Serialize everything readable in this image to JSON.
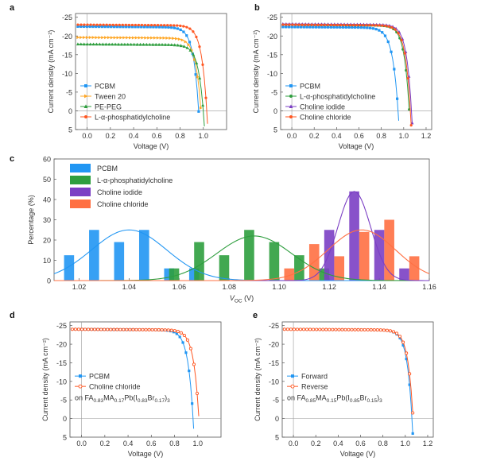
{
  "figure": {
    "panels": [
      "a",
      "b",
      "c",
      "d",
      "e"
    ]
  },
  "chart_data": [
    {
      "id": "a",
      "type": "line",
      "panel_label": "a",
      "xlabel": "Voltage (V)",
      "ylabel": "Current density (mA cm⁻²)",
      "xlim": [
        -0.1,
        1.2
      ],
      "ylim": [
        5,
        -26
      ],
      "xticks": [
        0.0,
        0.2,
        0.4,
        0.6,
        0.8,
        1.0
      ],
      "xtick_labels": [
        "0.0",
        "0.2",
        "0.4",
        "0.6",
        "0.8",
        "1.0"
      ],
      "yticks": [
        -25,
        -20,
        -15,
        -10,
        -5,
        0,
        5
      ],
      "ytick_labels": [
        "-25",
        "-20",
        "-15",
        "-10",
        "-5",
        "0",
        "5"
      ],
      "legend_position": "bottom-left",
      "series": [
        {
          "name": "PCBM",
          "marker": "square",
          "color": "#2196f3",
          "jsc": -22.5,
          "voc": 1.03,
          "vk": 0.96,
          "k": 0.045
        },
        {
          "name": "Tween 20",
          "marker": "triangle-right",
          "color": "#ffa726",
          "jsc": -19.6,
          "voc": 1.05,
          "vk": 0.98,
          "k": 0.045
        },
        {
          "name": "PE-PEG",
          "marker": "triangle-up",
          "color": "#2e9e3e",
          "jsc": -17.8,
          "voc": 1.07,
          "vk": 1.0,
          "k": 0.045
        },
        {
          "name": "L-α-phosphatidylcholine",
          "marker": "circle",
          "color": "#ff5722",
          "jsc": -23.0,
          "voc": 1.1,
          "vk": 1.03,
          "k": 0.045
        }
      ]
    },
    {
      "id": "b",
      "type": "line",
      "panel_label": "b",
      "xlabel": "Voltage (V)",
      "ylabel": "Current density (mA cm⁻²)",
      "xlim": [
        -0.1,
        1.25
      ],
      "ylim": [
        5,
        -26
      ],
      "xticks": [
        0.0,
        0.2,
        0.4,
        0.6,
        0.8,
        1.0,
        1.2
      ],
      "xtick_labels": [
        "0.0",
        "0.2",
        "0.4",
        "0.6",
        "0.8",
        "1.0",
        "1.2"
      ],
      "yticks": [
        -25,
        -20,
        -15,
        -10,
        -5,
        0,
        5
      ],
      "ytick_labels": [
        "-25",
        "-20",
        "-15",
        "-10",
        "-5",
        "0",
        "5"
      ],
      "legend_position": "bottom-left",
      "series": [
        {
          "name": "PCBM",
          "marker": "square",
          "color": "#2196f3",
          "jsc": -22.4,
          "voc": 1.07,
          "vk": 0.95,
          "k": 0.05
        },
        {
          "name": "L-α-phosphatidylcholine",
          "marker": "circle",
          "color": "#2e9e3e",
          "jsc": -23.0,
          "voc": 1.13,
          "vk": 1.05,
          "k": 0.045
        },
        {
          "name": "Choline iodide",
          "marker": "triangle-up",
          "color": "#7b3fc4",
          "jsc": -23.2,
          "voc": 1.16,
          "vk": 1.07,
          "k": 0.045
        },
        {
          "name": "Choline chloride",
          "marker": "circle",
          "color": "#ff5722",
          "jsc": -23.0,
          "voc": 1.15,
          "vk": 1.06,
          "k": 0.045
        }
      ]
    },
    {
      "id": "c",
      "type": "bar",
      "panel_label": "c",
      "xlabel": "V",
      "xlabel_sub": "OC",
      "xlabel_unit": " (V)",
      "ylabel": "Percentage (%)",
      "xlim": [
        1.01,
        1.16
      ],
      "ylim": [
        0,
        60
      ],
      "xticks": [
        1.02,
        1.04,
        1.06,
        1.08,
        1.1,
        1.12,
        1.14,
        1.16
      ],
      "xtick_labels": [
        "1.02",
        "1.04",
        "1.06",
        "1.08",
        "1.10",
        "1.12",
        "1.14",
        "1.16"
      ],
      "yticks": [
        0,
        10,
        20,
        30,
        40,
        50,
        60
      ],
      "ytick_labels": [
        "0",
        "10",
        "20",
        "30",
        "40",
        "50",
        "60"
      ],
      "legend_position": "top-left",
      "bar_width": 0.004,
      "series": [
        {
          "name": "PCBM",
          "color": "#2196f3",
          "x": [
            1.016,
            1.026,
            1.036,
            1.046,
            1.056,
            1.066
          ],
          "values": [
            12.5,
            25,
            19,
            25,
            6,
            6
          ],
          "fit": {
            "mu": 1.04,
            "sigma": 0.015,
            "amp": 25
          }
        },
        {
          "name": "L-α-phosphatidylcholine",
          "color": "#2e9e3e",
          "x": [
            1.058,
            1.068,
            1.078,
            1.088,
            1.098,
            1.108,
            1.118
          ],
          "values": [
            6,
            19,
            12.5,
            25,
            19,
            12.5,
            6
          ],
          "fit": {
            "mu": 1.09,
            "sigma": 0.015,
            "amp": 22
          }
        },
        {
          "name": "Choline iodide",
          "color": "#7b3fc4",
          "x": [
            1.12,
            1.13,
            1.14,
            1.15
          ],
          "values": [
            25,
            44,
            25,
            6
          ],
          "fit": {
            "mu": 1.13,
            "sigma": 0.0065,
            "amp": 44
          }
        },
        {
          "name": "Choline chloride",
          "color": "#ff7043",
          "x": [
            1.104,
            1.114,
            1.124,
            1.134,
            1.144,
            1.154
          ],
          "values": [
            6,
            18,
            12,
            24,
            30,
            12
          ],
          "fit": {
            "mu": 1.133,
            "sigma": 0.0135,
            "amp": 25
          }
        }
      ]
    },
    {
      "id": "d",
      "type": "line",
      "panel_label": "d",
      "xlabel": "Voltage (V)",
      "ylabel": "Current density (mA cm⁻²)",
      "xlim": [
        -0.1,
        1.2
      ],
      "ylim": [
        5,
        -26
      ],
      "xticks": [
        0.0,
        0.2,
        0.4,
        0.6,
        0.8,
        1.0
      ],
      "xtick_labels": [
        "0.0",
        "0.2",
        "0.4",
        "0.6",
        "0.8",
        "1.0"
      ],
      "yticks": [
        -25,
        -20,
        -15,
        -10,
        -5,
        0,
        5
      ],
      "ytick_labels": [
        "-25",
        "-20",
        "-15",
        "-10",
        "-5",
        "0",
        "5"
      ],
      "legend_position": "center-left",
      "composition": [
        {
          "t": "on FA",
          "s": ""
        },
        {
          "t": "0.83",
          "s": "sub"
        },
        {
          "t": "MA",
          "s": ""
        },
        {
          "t": "0.17",
          "s": "sub"
        },
        {
          "t": "Pb(I",
          "s": ""
        },
        {
          "t": "0.83",
          "s": "sub"
        },
        {
          "t": "Br",
          "s": ""
        },
        {
          "t": "0.17",
          "s": "sub"
        },
        {
          "t": ")",
          "s": ""
        },
        {
          "t": "3",
          "s": "sub"
        }
      ],
      "series": [
        {
          "name": "PCBM",
          "marker": "square",
          "color": "#2196f3",
          "jsc": -24.0,
          "voc": 1.05,
          "vk": 0.96,
          "k": 0.045
        },
        {
          "name": "Choline chloride",
          "marker": "circle-open",
          "color": "#ff5722",
          "jsc": -24.0,
          "voc": 1.1,
          "vk": 1.01,
          "k": 0.045
        }
      ]
    },
    {
      "id": "e",
      "type": "line",
      "panel_label": "e",
      "xlabel": "Voltage (V)",
      "ylabel": "Current density (mA cm⁻²)",
      "xlim": [
        -0.1,
        1.25
      ],
      "ylim": [
        5,
        -26
      ],
      "xticks": [
        0.0,
        0.2,
        0.4,
        0.6,
        0.8,
        1.0,
        1.2
      ],
      "xtick_labels": [
        "0.0",
        "0.2",
        "0.4",
        "0.6",
        "0.8",
        "1.0",
        "1.2"
      ],
      "yticks": [
        -25,
        -20,
        -15,
        -10,
        -5,
        0,
        5
      ],
      "ytick_labels": [
        "-25",
        "-20",
        "-15",
        "-10",
        "-5",
        "0",
        "5"
      ],
      "legend_position": "center-left",
      "composition": [
        {
          "t": "on FA",
          "s": ""
        },
        {
          "t": "0.85",
          "s": "sub"
        },
        {
          "t": "MA",
          "s": ""
        },
        {
          "t": "0.15",
          "s": "sub"
        },
        {
          "t": "Pb(I",
          "s": ""
        },
        {
          "t": "0.85",
          "s": "sub"
        },
        {
          "t": "Br",
          "s": ""
        },
        {
          "t": "0.15",
          "s": "sub"
        },
        {
          "t": ")",
          "s": ""
        },
        {
          "t": "3",
          "s": "sub"
        }
      ],
      "series": [
        {
          "name": "Forward",
          "marker": "square",
          "color": "#2196f3",
          "jsc": -24.0,
          "voc": 1.15,
          "vk": 1.06,
          "k": 0.045
        },
        {
          "name": "Reverse",
          "marker": "circle-open",
          "color": "#ff5722",
          "jsc": -24.0,
          "voc": 1.15,
          "vk": 1.07,
          "k": 0.045
        }
      ]
    }
  ]
}
